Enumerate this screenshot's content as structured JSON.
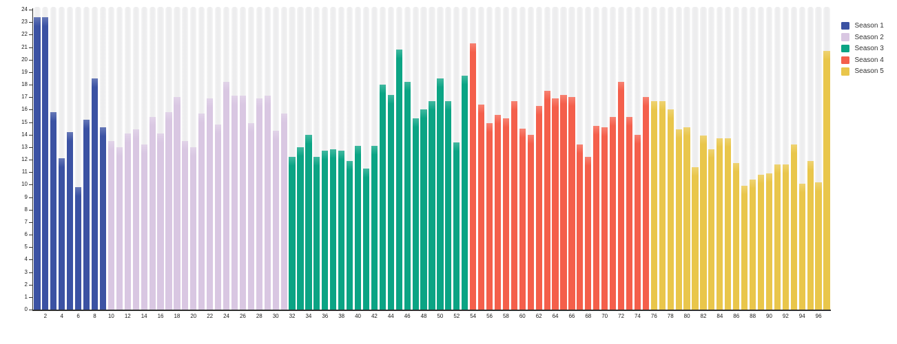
{
  "chart_data": {
    "type": "bar",
    "title": "",
    "xlabel": "",
    "ylabel": "",
    "x_unit": "episode-number",
    "episodes_total": 97,
    "ylim": [
      0,
      24
    ],
    "y_ticks": [
      0,
      1,
      2,
      3,
      4,
      5,
      6,
      7,
      8,
      9,
      10,
      11,
      12,
      13,
      14,
      15,
      16,
      17,
      18,
      19,
      20,
      21,
      22,
      23,
      24
    ],
    "x_tick_labels": [
      2,
      4,
      6,
      8,
      10,
      12,
      14,
      16,
      18,
      20,
      22,
      24,
      26,
      28,
      30,
      32,
      34,
      36,
      38,
      40,
      42,
      44,
      46,
      48,
      50,
      52,
      54,
      56,
      58,
      60,
      62,
      64,
      66,
      68,
      70,
      72,
      74,
      76,
      78,
      80,
      82,
      84,
      86,
      88,
      90,
      92,
      94,
      96
    ],
    "grid": "vertical-stripes",
    "legend_position": "top-right",
    "series": [
      {
        "name": "Season 1",
        "color": "#3b52a3",
        "start_episode": 1,
        "values": [
          23.4,
          23.4,
          15.8,
          12.1,
          14.2,
          9.8,
          15.2,
          18.5,
          14.6
        ]
      },
      {
        "name": "Season 2",
        "color": "#d9c7e2",
        "start_episode": 10,
        "values": [
          13.5,
          13.0,
          14.1,
          14.4,
          13.2,
          15.4,
          14.1,
          15.8,
          17.0,
          13.5,
          13.0,
          15.7,
          16.9,
          14.8,
          18.2,
          17.1,
          17.1,
          14.9,
          16.9,
          17.1,
          14.3,
          15.7
        ]
      },
      {
        "name": "Season 3",
        "color": "#0ba484",
        "start_episode": 32,
        "values": [
          12.2,
          13.0,
          14.0,
          12.2,
          12.7,
          12.8,
          12.7,
          11.9,
          13.1,
          11.3,
          13.1,
          18.0,
          17.2,
          20.8,
          18.2,
          15.3,
          16.0,
          16.7,
          18.5,
          16.7,
          13.4,
          18.7
        ]
      },
      {
        "name": "Season 4",
        "color": "#f45f4b",
        "start_episode": 54,
        "values": [
          21.3,
          16.4,
          14.9,
          15.6,
          15.3,
          16.7,
          14.5,
          14.0,
          16.3,
          17.5,
          16.9,
          17.2,
          17.0,
          13.2,
          12.2,
          14.7,
          14.6,
          15.4,
          18.2,
          15.4,
          14.0,
          17.0
        ]
      },
      {
        "name": "Season 5",
        "color": "#e9c64b",
        "start_episode": 76,
        "values": [
          16.7,
          16.7,
          16.0,
          14.4,
          14.6,
          11.4,
          13.9,
          12.8,
          13.7,
          13.7,
          11.7,
          9.9,
          10.4,
          10.8,
          10.9,
          11.6,
          11.6,
          13.2,
          10.1,
          11.9,
          10.2,
          20.7
        ]
      }
    ],
    "colors": {
      "background": "#ffffff",
      "stripe": "#ededee",
      "stripe_edge": "#f5f5f6",
      "axis": "#2f2f2f",
      "tick_text": "#1a1a1a",
      "legend_text": "#333333"
    }
  }
}
